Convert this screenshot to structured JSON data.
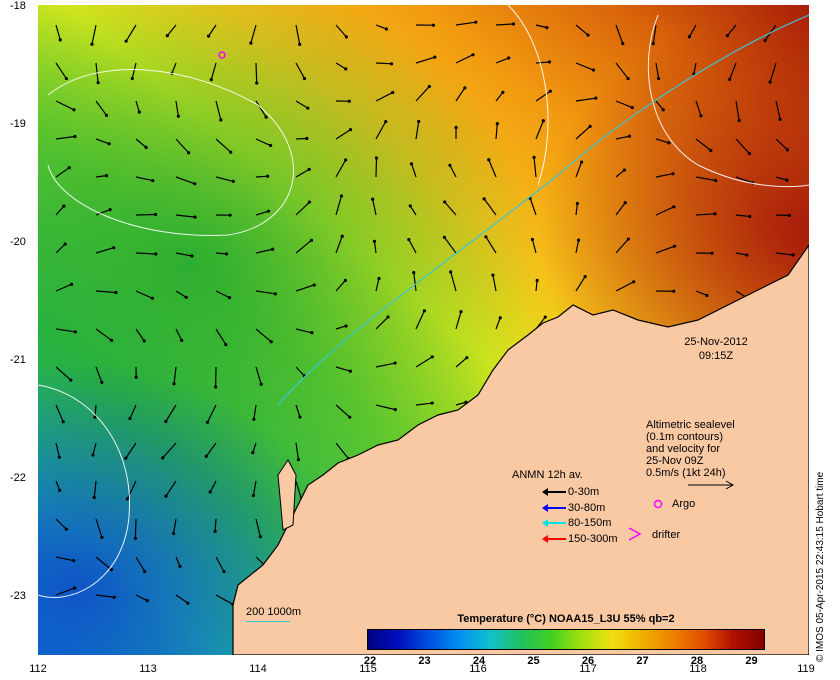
{
  "map": {
    "date": "25-Nov-2012",
    "time": "09:15Z",
    "footer": "© IMOS 05-Apr-2015 22:43:15 Hobart time",
    "lat_ticks": [
      "-18",
      "-19",
      "-20",
      "-21",
      "-22",
      "-23"
    ],
    "lon_ticks": [
      "112",
      "113",
      "114",
      "115",
      "116",
      "117",
      "118",
      "119"
    ],
    "lon_range": [
      112,
      119
    ],
    "lat_range": [
      -23.5,
      -18
    ],
    "land_color": "#f9c9a3",
    "altimetry_note": [
      "Altimetric sealevel",
      "(0.1m contours)",
      "and velocity for",
      "25-Nov 09Z",
      "0.5m/s (1kt 24h)"
    ],
    "argo_label": "Argo",
    "drifter_label": "drifter",
    "anmn_title": "ANMN 12h av.",
    "anmn_items": [
      {
        "label": "0-30m",
        "color": "#000000"
      },
      {
        "label": "30-80m",
        "color": "#0000ff"
      },
      {
        "label": "80-150m",
        "color": "#00e5e5"
      },
      {
        "label": "150-300m",
        "color": "#ff0000"
      }
    ],
    "isobath_label": "200  1000m",
    "colorbar": {
      "title": "Temperature (°C) NOAA15_L3U 55% qb=2",
      "ticks": [
        "22",
        "23",
        "24",
        "25",
        "26",
        "27",
        "28",
        "29"
      ],
      "range": [
        22,
        29.2
      ]
    }
  }
}
